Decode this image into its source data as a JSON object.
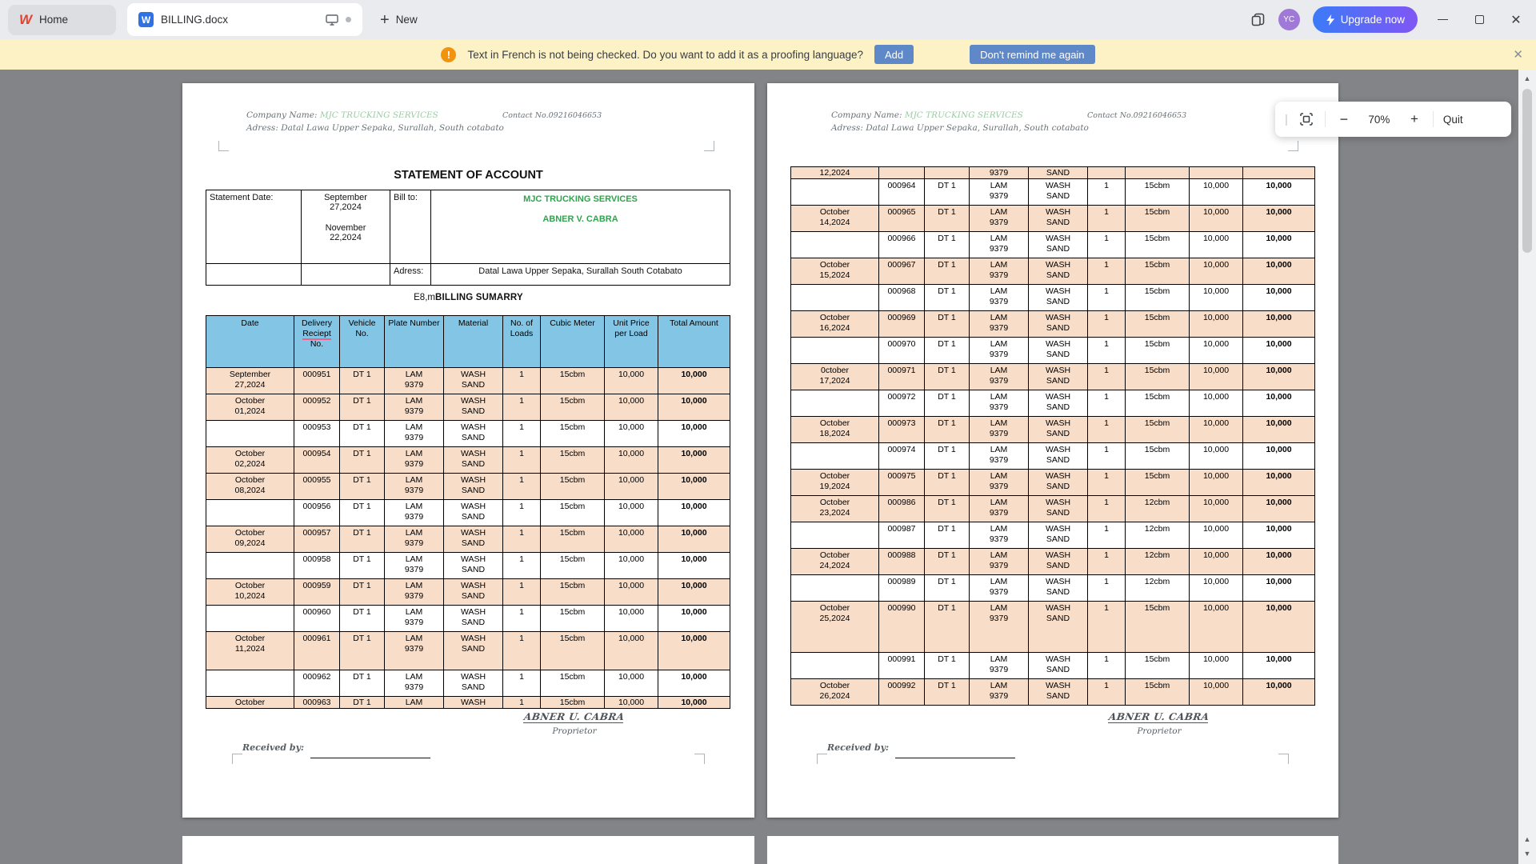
{
  "window": {
    "home_tab": "Home",
    "document_tab": "BILLING.docx",
    "new_label": "New",
    "avatar": "YC",
    "upgrade_label": "Upgrade now"
  },
  "notification": {
    "message": "Text in French is not being checked. Do you want to add it as a proofing language?",
    "add_label": "Add",
    "dismiss_label": "Don't remind me again"
  },
  "zoom_toolbar": {
    "zoom_out": "−",
    "zoom_level": "70%",
    "zoom_in": "+",
    "quit_label": "Quit"
  },
  "document": {
    "header": {
      "company_prefix": "Company Name:",
      "company_name": "MJC TRUCKING SERVICES",
      "address_line": "Adress: Datal Lawa Upper Sepaka, Surallah, South cotabato",
      "contact": "Contact No.09216046653"
    },
    "title": "STATEMENT OF ACCOUNT",
    "statement_table": {
      "statement_date_label": "Statement Date:",
      "date1": "September 27,2024",
      "date2": "November 22,2024",
      "bill_to_label": "Bill to:",
      "bill_to_company": "MJC TRUCKING SERVICES",
      "bill_to_name": "ABNER V. CABRA",
      "address_label": "Adress:",
      "address_value": "Datal Lawa Upper Sepaka, Surallah South Cotabato"
    },
    "summary_prefix": "E8,m",
    "summary_title": "BILLING SUMARRY",
    "billing_table": {
      "misspelled_word": "Reciept",
      "columns": [
        "Date",
        "Delivery Reciept No.",
        "Vehicle No.",
        "Plate Number",
        "Material",
        "No. of Loads",
        "Cubic Meter",
        "Unit Price per Load",
        "Total Amount"
      ],
      "page1_rows": [
        {
          "date": "September 27,2024",
          "receipt": "000951",
          "vehicle": "DT 1",
          "plate": "LAM 9379",
          "material": "WASH SAND",
          "loads": "1",
          "cubic": "15cbm",
          "unit_price": "10,000",
          "total": "10,000",
          "shaded": true
        },
        {
          "date": "October 01,2024",
          "receipt": "000952",
          "vehicle": "DT 1",
          "plate": "LAM 9379",
          "material": "WASH SAND",
          "loads": "1",
          "cubic": "15cbm",
          "unit_price": "10,000",
          "total": "10,000",
          "shaded": true
        },
        {
          "date": "",
          "receipt": "000953",
          "vehicle": "DT 1",
          "plate": "LAM 9379",
          "material": "WASH SAND",
          "loads": "1",
          "cubic": "15cbm",
          "unit_price": "10,000",
          "total": "10,000",
          "shaded": false
        },
        {
          "date": "October 02,2024",
          "receipt": "000954",
          "vehicle": "DT 1",
          "plate": "LAM 9379",
          "material": "WASH SAND",
          "loads": "1",
          "cubic": "15cbm",
          "unit_price": "10,000",
          "total": "10,000",
          "shaded": true
        },
        {
          "date": "October 08,2024",
          "receipt": "000955",
          "vehicle": "DT 1",
          "plate": "LAM 9379",
          "material": "WASH SAND",
          "loads": "1",
          "cubic": "15cbm",
          "unit_price": "10,000",
          "total": "10,000",
          "shaded": true
        },
        {
          "date": "",
          "receipt": "000956",
          "vehicle": "DT 1",
          "plate": "LAM 9379",
          "material": "WASH SAND",
          "loads": "1",
          "cubic": "15cbm",
          "unit_price": "10,000",
          "total": "10,000",
          "shaded": false
        },
        {
          "date": "October 09,2024",
          "receipt": "000957",
          "vehicle": "DT 1",
          "plate": "LAM 9379",
          "material": "WASH SAND",
          "loads": "1",
          "cubic": "15cbm",
          "unit_price": "10,000",
          "total": "10,000",
          "shaded": true
        },
        {
          "date": "",
          "receipt": "000958",
          "vehicle": "DT 1",
          "plate": "LAM 9379",
          "material": "WASH SAND",
          "loads": "1",
          "cubic": "15cbm",
          "unit_price": "10,000",
          "total": "10,000",
          "shaded": false
        },
        {
          "date": "October 10,2024",
          "receipt": "000959",
          "vehicle": "DT 1",
          "plate": "LAM 9379",
          "material": "WASH SAND",
          "loads": "1",
          "cubic": "15cbm",
          "unit_price": "10,000",
          "total": "10,000",
          "shaded": true
        },
        {
          "date": "",
          "receipt": "000960",
          "vehicle": "DT 1",
          "plate": "LAM 9379",
          "material": "WASH SAND",
          "loads": "1",
          "cubic": "15cbm",
          "unit_price": "10,000",
          "total": "10,000",
          "shaded": false
        },
        {
          "date": "October 11,2024",
          "receipt": "000961",
          "vehicle": "DT 1",
          "plate": "LAM 9379",
          "material": "WASH SAND",
          "loads": "1",
          "cubic": "15cbm",
          "unit_price": "10,000",
          "total": "10,000",
          "shaded": true,
          "size": "tall"
        },
        {
          "date": "",
          "receipt": "000962",
          "vehicle": "DT 1",
          "plate": "LAM 9379",
          "material": "WASH SAND",
          "loads": "1",
          "cubic": "15cbm",
          "unit_price": "10,000",
          "total": "10,000",
          "shaded": false
        },
        {
          "date": "October",
          "receipt": "000963",
          "vehicle": "DT 1",
          "plate": "LAM",
          "material": "WASH",
          "loads": "1",
          "cubic": "15cbm",
          "unit_price": "10,000",
          "total": "10,000",
          "shaded": true,
          "size": "clip"
        }
      ],
      "page2_rows": [
        {
          "date": "12,2024",
          "receipt": "",
          "vehicle": "",
          "plate": "9379",
          "material": "SAND",
          "loads": "",
          "cubic": "",
          "unit_price": "",
          "total": "",
          "shaded": true,
          "size": "clip"
        },
        {
          "date": "",
          "receipt": "000964",
          "vehicle": "DT 1",
          "plate": "LAM 9379",
          "material": "WASH SAND",
          "loads": "1",
          "cubic": "15cbm",
          "unit_price": "10,000",
          "total": "10,000",
          "shaded": false
        },
        {
          "date": "October 14,2024",
          "receipt": "000965",
          "vehicle": "DT 1",
          "plate": "LAM 9379",
          "material": "WASH SAND",
          "loads": "1",
          "cubic": "15cbm",
          "unit_price": "10,000",
          "total": "10,000",
          "shaded": true
        },
        {
          "date": "",
          "receipt": "000966",
          "vehicle": "DT 1",
          "plate": "LAM 9379",
          "material": "WASH SAND",
          "loads": "1",
          "cubic": "15cbm",
          "unit_price": "10,000",
          "total": "10,000",
          "shaded": false
        },
        {
          "date": "October 15,2024",
          "receipt": "000967",
          "vehicle": "DT 1",
          "plate": "LAM 9379",
          "material": "WASH SAND",
          "loads": "1",
          "cubic": "15cbm",
          "unit_price": "10,000",
          "total": "10,000",
          "shaded": true
        },
        {
          "date": "",
          "receipt": "000968",
          "vehicle": "DT 1",
          "plate": "LAM 9379",
          "material": "WASH SAND",
          "loads": "1",
          "cubic": "15cbm",
          "unit_price": "10,000",
          "total": "10,000",
          "shaded": false
        },
        {
          "date": "October 16,2024",
          "receipt": "000969",
          "vehicle": "DT 1",
          "plate": "LAM 9379",
          "material": "WASH SAND",
          "loads": "1",
          "cubic": "15cbm",
          "unit_price": "10,000",
          "total": "10,000",
          "shaded": true
        },
        {
          "date": "",
          "receipt": "000970",
          "vehicle": "DT 1",
          "plate": "LAM 9379",
          "material": "WASH SAND",
          "loads": "1",
          "cubic": "15cbm",
          "unit_price": "10,000",
          "total": "10,000",
          "shaded": false
        },
        {
          "date": "0ctober 17,2024",
          "receipt": "000971",
          "vehicle": "DT 1",
          "plate": "LAM 9379",
          "material": "WASH SAND",
          "loads": "1",
          "cubic": "15cbm",
          "unit_price": "10,000",
          "total": "10,000",
          "shaded": true
        },
        {
          "date": "",
          "receipt": "000972",
          "vehicle": "DT 1",
          "plate": "LAM 9379",
          "material": "WASH SAND",
          "loads": "1",
          "cubic": "15cbm",
          "unit_price": "10,000",
          "total": "10,000",
          "shaded": false
        },
        {
          "date": "October 18,2024",
          "receipt": "000973",
          "vehicle": "DT 1",
          "plate": "LAM 9379",
          "material": "WASH SAND",
          "loads": "1",
          "cubic": "15cbm",
          "unit_price": "10,000",
          "total": "10,000",
          "shaded": true
        },
        {
          "date": "",
          "receipt": "000974",
          "vehicle": "DT 1",
          "plate": "LAM 9379",
          "material": "WASH SAND",
          "loads": "1",
          "cubic": "15cbm",
          "unit_price": "10,000",
          "total": "10,000",
          "shaded": false
        },
        {
          "date": "October 19,2024",
          "receipt": "000975",
          "vehicle": "DT 1",
          "plate": "LAM 9379",
          "material": "WASH SAND",
          "loads": "1",
          "cubic": "15cbm",
          "unit_price": "10,000",
          "total": "10,000",
          "shaded": true
        },
        {
          "date": "October 23,2024",
          "receipt": "000986",
          "vehicle": "DT 1",
          "plate": "LAM 9379",
          "material": "WASH SAND",
          "loads": "1",
          "cubic": "12cbm",
          "unit_price": "10,000",
          "total": "10,000",
          "shaded": true
        },
        {
          "date": "",
          "receipt": "000987",
          "vehicle": "DT 1",
          "plate": "LAM 9379",
          "material": "WASH SAND",
          "loads": "1",
          "cubic": "12cbm",
          "unit_price": "10,000",
          "total": "10,000",
          "shaded": false
        },
        {
          "date": "October 24,2024",
          "receipt": "000988",
          "vehicle": "DT 1",
          "plate": "LAM 9379",
          "material": "WASH SAND",
          "loads": "1",
          "cubic": "12cbm",
          "unit_price": "10,000",
          "total": "10,000",
          "shaded": true
        },
        {
          "date": "",
          "receipt": "000989",
          "vehicle": "DT 1",
          "plate": "LAM 9379",
          "material": "WASH SAND",
          "loads": "1",
          "cubic": "12cbm",
          "unit_price": "10,000",
          "total": "10,000",
          "shaded": false
        },
        {
          "date": "October 25,2024",
          "receipt": "000990",
          "vehicle": "DT 1",
          "plate": "LAM 9379",
          "material": "WASH SAND",
          "loads": "1",
          "cubic": "15cbm",
          "unit_price": "10,000",
          "total": "10,000",
          "shaded": true,
          "size": "xtall"
        },
        {
          "date": "",
          "receipt": "000991",
          "vehicle": "DT 1",
          "plate": "LAM 9379",
          "material": "WASH SAND",
          "loads": "1",
          "cubic": "15cbm",
          "unit_price": "10,000",
          "total": "10,000",
          "shaded": false
        },
        {
          "date": "October 26,2024",
          "receipt": "000992",
          "vehicle": "DT 1",
          "plate": "LAM 9379",
          "material": "WASH SAND",
          "loads": "1",
          "cubic": "15cbm",
          "unit_price": "10,000",
          "total": "10,000",
          "shaded": true
        }
      ]
    },
    "signature": {
      "name": "ABNER U. CABRA",
      "title": "Proprietor",
      "received_by": "Received by:"
    }
  }
}
